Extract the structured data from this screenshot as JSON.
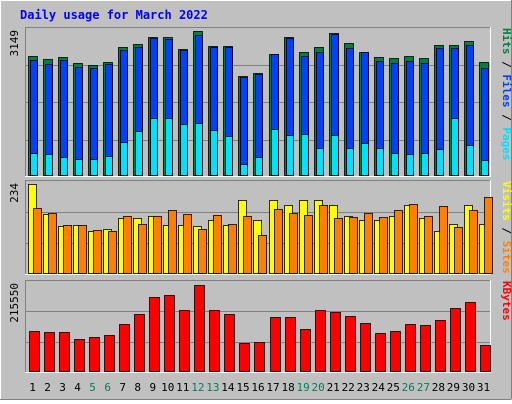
{
  "chart_data": {
    "type": "bar",
    "title": "Daily usage for March 2022",
    "categories": [
      "1",
      "2",
      "3",
      "4",
      "5",
      "6",
      "7",
      "8",
      "9",
      "10",
      "11",
      "12",
      "13",
      "14",
      "15",
      "16",
      "17",
      "18",
      "19",
      "20",
      "21",
      "22",
      "23",
      "24",
      "25",
      "26",
      "27",
      "28",
      "29",
      "30",
      "31"
    ],
    "weekend_days": [
      "5",
      "6",
      "12",
      "13",
      "19",
      "20",
      "26",
      "27"
    ],
    "panels": [
      {
        "id": "pages-files-hits",
        "ylabel_parts": [
          "Pages",
          "Files",
          "Hits"
        ],
        "max_label": "3149",
        "ymax": 3149,
        "series": [
          {
            "name": "Hits",
            "values": [
              2600,
              2530,
              2590,
              2440,
              2400,
              2470,
              2810,
              2860,
              3020,
              3020,
              2750,
              3149,
              2830,
              2830,
              2170,
              2240,
              2650,
              3020,
              2690,
              2800,
              3110,
              2880,
              2700,
              2580,
              2560,
              2600,
              2550,
              2850,
              2850,
              2930,
              2480
            ]
          },
          {
            "name": "Files",
            "values": [
              2520,
              2430,
              2520,
              2370,
              2350,
              2430,
              2740,
              2790,
              2990,
              2970,
              2740,
              3070,
              2810,
              2800,
              2140,
              2200,
              2640,
              2990,
              2600,
              2700,
              3080,
              2780,
              2700,
              2500,
              2450,
              2490,
              2460,
              2770,
              2770,
              2850,
              2350
            ]
          },
          {
            "name": "Pages",
            "values": [
              480,
              460,
              400,
              340,
              340,
              410,
              720,
              960,
              1240,
              1240,
              1120,
              1140,
              980,
              850,
              240,
              390,
              1000,
              880,
              890,
              580,
              880,
              580,
              700,
              600,
              480,
              470,
              490,
              560,
              1250,
              660,
              330
            ]
          }
        ]
      },
      {
        "id": "sites-visits",
        "ylabel_parts": [
          "Sites",
          "Visits"
        ],
        "max_label": "234",
        "ymax": 234,
        "series": [
          {
            "name": "Visits",
            "values": [
              234,
              155,
              123,
              125,
              110,
              115,
              145,
              145,
              150,
              125,
              125,
              123,
              140,
              125,
              192,
              140,
              192,
              180,
              192,
              192,
              180,
              150,
              140,
              140,
              150,
              180,
              145,
              110,
              130,
              180,
              130
            ]
          },
          {
            "name": "Sites",
            "values": [
              170,
              157,
              127,
              127,
              112,
              110,
              150,
              128,
              150,
              165,
              155,
              115,
              152,
              128,
              150,
              101,
              167,
              157,
              153,
              180,
              145,
              148,
              157,
              148,
              165,
              182,
              150,
              175,
              122,
              166,
              199
            ]
          }
        ]
      },
      {
        "id": "kbytes",
        "ylabel_parts": [
          "KBytes"
        ],
        "max_label": "215550",
        "ymax": 215550,
        "series": [
          {
            "name": "KBytes",
            "values": [
              98000,
              96000,
              97000,
              80000,
              83000,
              90000,
              117000,
              140000,
              184000,
              189000,
              150000,
              212000,
              152000,
              140000,
              69000,
              73000,
              135000,
              135000,
              104000,
              151000,
              147000,
              136000,
              119000,
              94000,
              100000,
              117000,
              115000,
              127000,
              155000,
              170000,
              65000
            ]
          }
        ]
      }
    ],
    "colors": {
      "background": "#c0c0c0",
      "title": "#0000ff",
      "hits": "#008040",
      "files": "#0040ff",
      "pages": "#00e0ff",
      "visits": "#ffff00",
      "sites": "#ff8000",
      "kbytes": "#ff0000",
      "gridline": "#808080",
      "weekday_label": "#000000",
      "weekend_label": "#00805c"
    }
  }
}
